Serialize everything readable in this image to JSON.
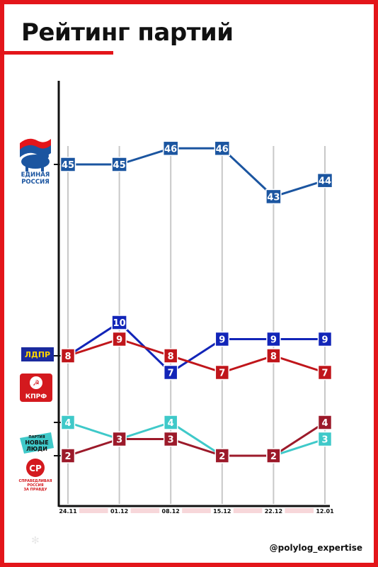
{
  "header": {
    "title": "Рейтинг партий"
  },
  "footer": {
    "handle": "@polylog_expertise"
  },
  "colors": {
    "accent": "#e3151a",
    "er": "#1b55a0",
    "ldpr": "#1225b8",
    "kprf": "#c0161b",
    "nl": "#3fc9c9",
    "sr": "#9c1a2a",
    "gridline": "#c8c8c8"
  },
  "parties": [
    {
      "key": "er",
      "label_lines": [
        "ЕДИНАЯ",
        "РОССИЯ"
      ],
      "icon": "bear-flag-logo"
    },
    {
      "key": "ldpr",
      "label_lines": [
        "ЛДПР"
      ],
      "icon": "ldpr-logo"
    },
    {
      "key": "kprf",
      "label_lines": [
        "КПРФ"
      ],
      "icon": "hammer-sickle-logo"
    },
    {
      "key": "nl",
      "label_lines": [
        "ПАРТИЯ",
        "НОВЫЕ",
        "ЛЮДИ"
      ],
      "icon": "new-people-logo"
    },
    {
      "key": "sr",
      "label_lines": [
        "СР",
        "СПРАВЕДЛИВАЯ",
        "РОССИЯ",
        "ЗА ПРАВДУ"
      ],
      "icon": "sr-logo"
    }
  ],
  "chart_data": {
    "type": "line",
    "x": [
      "24.11",
      "01.12",
      "08.12",
      "15.12",
      "22.12",
      "12.01"
    ],
    "grid": true,
    "series": [
      {
        "key": "er",
        "color": "#1b55a0",
        "values": [
          45,
          45,
          46,
          46,
          43,
          44
        ]
      },
      {
        "key": "ldpr",
        "color": "#1225b8",
        "values": [
          8,
          10,
          7,
          9,
          9,
          9
        ]
      },
      {
        "key": "kprf",
        "color": "#c0161b",
        "values": [
          8,
          9,
          8,
          7,
          8,
          7
        ]
      },
      {
        "key": "nl",
        "color": "#3fc9c9",
        "values": [
          4,
          3,
          4,
          2,
          2,
          3
        ]
      },
      {
        "key": "sr",
        "color": "#9c1a2a",
        "values": [
          2,
          3,
          3,
          2,
          2,
          4
        ]
      }
    ]
  }
}
